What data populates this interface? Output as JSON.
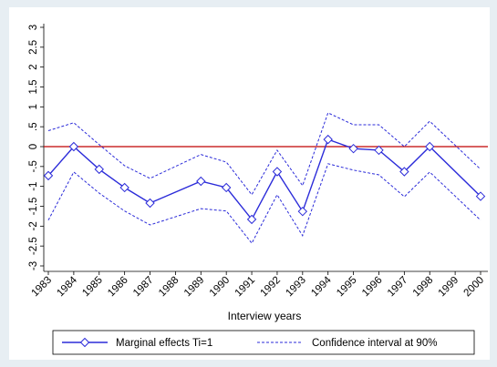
{
  "chart_data": {
    "type": "line",
    "x": [
      1983,
      1984,
      1985,
      1986,
      1987,
      1989,
      1990,
      1991,
      1992,
      1993,
      1994,
      1995,
      1996,
      1997,
      1998,
      2000
    ],
    "series": [
      {
        "name": "Marginal effects Ti=1",
        "color": "#2b2bd9",
        "marker": "diamond",
        "values": [
          -0.73,
          0,
          -0.57,
          -1.03,
          -1.42,
          -0.87,
          -1.03,
          -1.83,
          -0.63,
          -1.63,
          0.18,
          -0.05,
          -0.09,
          -0.63,
          0,
          -1.25
        ]
      }
    ],
    "ci": {
      "name": "Confidence interval at 90%",
      "color": "#2b2bd9",
      "dash": true,
      "upper": [
        0.4,
        0.6,
        0.05,
        -0.48,
        -0.8,
        -0.2,
        -0.39,
        -1.21,
        -0.09,
        -0.98,
        0.85,
        0.55,
        0.55,
        0,
        0.64,
        -0.57
      ],
      "lower": [
        -1.85,
        -0.64,
        -1.17,
        -1.62,
        -1.97,
        -1.56,
        -1.62,
        -2.43,
        -1.21,
        -2.24,
        -0.43,
        -0.59,
        -0.71,
        -1.26,
        -0.64,
        -1.85
      ]
    },
    "reference_line": {
      "value": 0,
      "color": "#c00000"
    },
    "x_label": "Interview years",
    "xlim": [
      1983,
      2000
    ],
    "xticks": [
      1983,
      1984,
      1985,
      1986,
      1987,
      1988,
      1989,
      1990,
      1991,
      1992,
      1993,
      1994,
      1995,
      1996,
      1997,
      1998,
      1999,
      2000
    ],
    "ylim": [
      -3,
      3
    ],
    "yticks": [
      3,
      2.5,
      2,
      1.5,
      1,
      {
        "value": 0.5,
        "label": ".5"
      },
      0,
      {
        "value": -0.5,
        "label": "-.5"
      },
      -1,
      -1.5,
      -2,
      -2.5,
      -3
    ],
    "legend": "bottom"
  }
}
